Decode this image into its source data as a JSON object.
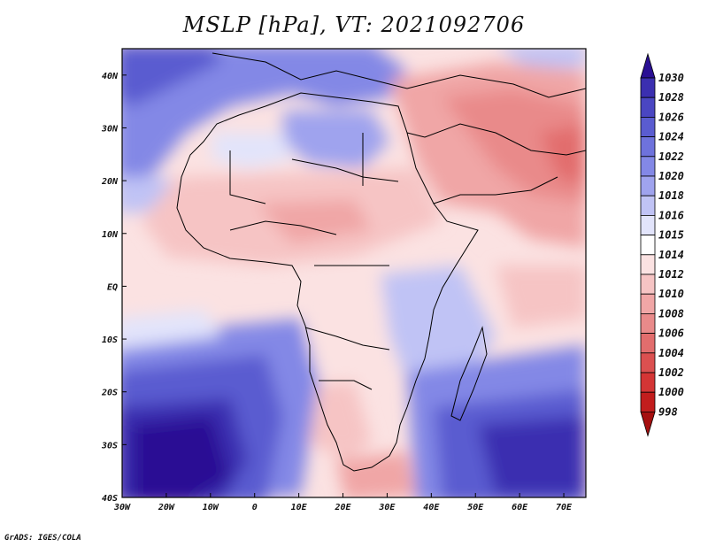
{
  "title": "MSLP [hPa], VT: 2021092706",
  "credit": "GrADS: IGES/COLA",
  "map": {
    "lon_range": [
      -30,
      75
    ],
    "lat_range": [
      -40,
      45
    ],
    "x_ticks": [
      {
        "lon": -30,
        "label": "30W"
      },
      {
        "lon": -20,
        "label": "20W"
      },
      {
        "lon": -10,
        "label": "10W"
      },
      {
        "lon": 0,
        "label": "0"
      },
      {
        "lon": 10,
        "label": "10E"
      },
      {
        "lon": 20,
        "label": "20E"
      },
      {
        "lon": 30,
        "label": "30E"
      },
      {
        "lon": 40,
        "label": "40E"
      },
      {
        "lon": 50,
        "label": "50E"
      },
      {
        "lon": 60,
        "label": "60E"
      },
      {
        "lon": 70,
        "label": "70E"
      }
    ],
    "y_ticks": [
      {
        "lat": 40,
        "label": "40N"
      },
      {
        "lat": 30,
        "label": "30N"
      },
      {
        "lat": 20,
        "label": "20N"
      },
      {
        "lat": 10,
        "label": "10N"
      },
      {
        "lat": 0,
        "label": "EQ"
      },
      {
        "lat": -10,
        "label": "10S"
      },
      {
        "lat": -20,
        "label": "20S"
      },
      {
        "lat": -30,
        "label": "30S"
      },
      {
        "lat": -40,
        "label": "40S"
      }
    ]
  },
  "colorbar": {
    "levels": [
      "1030",
      "1028",
      "1026",
      "1024",
      "1022",
      "1020",
      "1018",
      "1016",
      "1015",
      "1014",
      "1012",
      "1010",
      "1008",
      "1006",
      "1004",
      "1002",
      "1000",
      "998"
    ],
    "colors": [
      "#2a0f94",
      "#3b2fb0",
      "#4a46c2",
      "#5a5cd0",
      "#6e72dc",
      "#8388e6",
      "#9fa3ee",
      "#c0c3f5",
      "#e2e4fb",
      "#ffffff",
      "#fbe2e2",
      "#f6c4c4",
      "#f0a6a6",
      "#e98a8a",
      "#e26d6d",
      "#db5050",
      "#d43535",
      "#c21d1d",
      "#a50f0f"
    ]
  }
}
